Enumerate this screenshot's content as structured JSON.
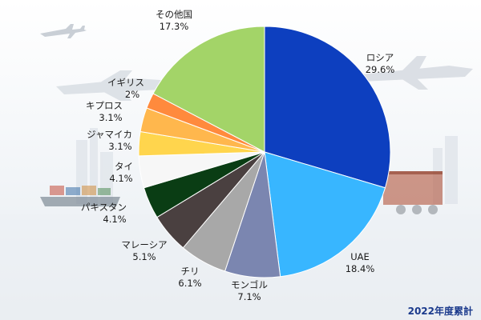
{
  "chart_data": {
    "type": "pie",
    "start_angle_deg": 0,
    "direction": "clockwise",
    "slices": [
      {
        "label": "ロシア",
        "value": 29.6,
        "value_text": "29.6%",
        "color": "#0d3fbf"
      },
      {
        "label": "UAE",
        "value": 18.4,
        "value_text": "18.4%",
        "color": "#38b6ff"
      },
      {
        "label": "モンゴル",
        "value": 7.1,
        "value_text": "7.1%",
        "color": "#7b86b0"
      },
      {
        "label": "チリ",
        "value": 6.1,
        "value_text": "6.1%",
        "color": "#a8a8a8"
      },
      {
        "label": "マレーシア",
        "value": 5.1,
        "value_text": "5.1%",
        "color": "#4a4040"
      },
      {
        "label": "パキスタン",
        "value": 4.1,
        "value_text": "4.1%",
        "color": "#0a3d14"
      },
      {
        "label": "タイ",
        "value": 4.1,
        "value_text": "4.1%",
        "color": "#f7f7f7"
      },
      {
        "label": "ジャマイカ",
        "value": 3.1,
        "value_text": "3.1%",
        "color": "#ffd54d"
      },
      {
        "label": "キプロス",
        "value": 3.1,
        "value_text": "3.1%",
        "color": "#ffb74d"
      },
      {
        "label": "イギリス",
        "value": 2.0,
        "value_text": "2%",
        "color": "#ff8a3d"
      },
      {
        "label": "その他国",
        "value": 17.3,
        "value_text": "17.3%",
        "color": "#a3d468"
      }
    ]
  },
  "footnote": "2022年度累計"
}
